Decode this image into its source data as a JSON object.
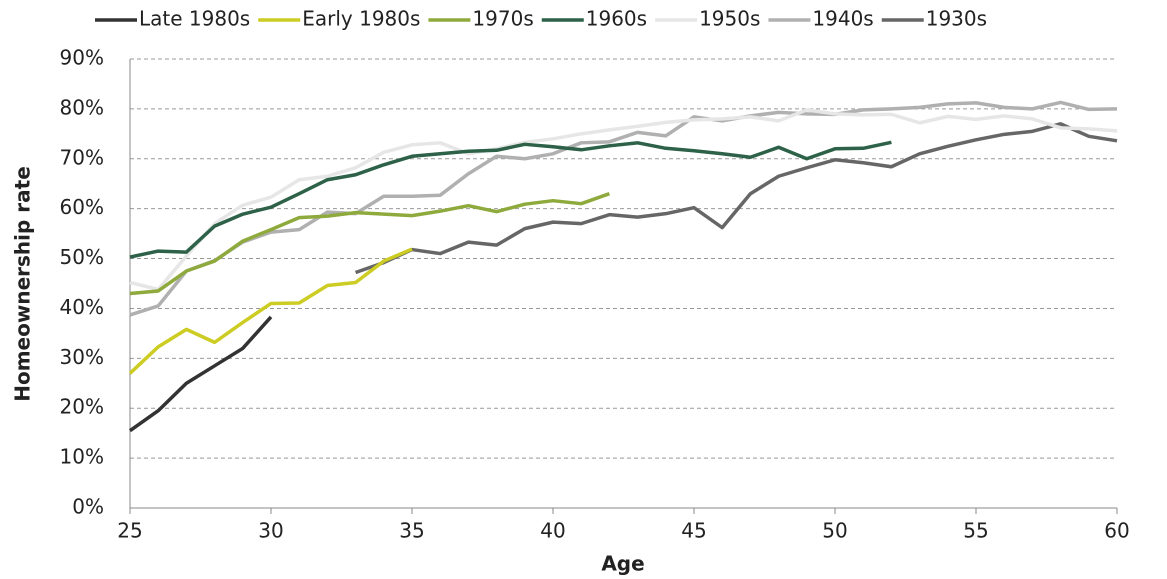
{
  "chart_data": {
    "type": "line",
    "xlabel": "Age",
    "ylabel": "Homeownership rate",
    "x": [
      25,
      26,
      27,
      28,
      29,
      30,
      31,
      32,
      33,
      34,
      35,
      36,
      37,
      38,
      39,
      40,
      41,
      42,
      43,
      44,
      45,
      46,
      47,
      48,
      49,
      50,
      51,
      52,
      53,
      54,
      55,
      56,
      57,
      58,
      59,
      60
    ],
    "xlim": [
      25,
      60
    ],
    "xticks": [
      25,
      30,
      35,
      40,
      45,
      50,
      55,
      60
    ],
    "ylim": [
      0,
      90
    ],
    "yticks": [
      {
        "value": 0,
        "label": "0%"
      },
      {
        "value": 10,
        "label": "10%"
      },
      {
        "value": 20,
        "label": "20%"
      },
      {
        "value": 30,
        "label": "30%"
      },
      {
        "value": 40,
        "label": "40%"
      },
      {
        "value": 50,
        "label": "50%"
      },
      {
        "value": 60,
        "label": "60%"
      },
      {
        "value": 70,
        "label": "70%"
      },
      {
        "value": 80,
        "label": "80%"
      },
      {
        "value": 90,
        "label": "90%"
      }
    ],
    "grid": true,
    "legend": "top",
    "series": [
      {
        "name": "Late 1980s",
        "color": "#333333",
        "values": [
          15.5,
          19.5,
          25,
          28.5,
          32,
          38.3,
          null,
          null,
          null,
          null,
          null,
          null,
          null,
          null,
          null,
          null,
          null,
          null,
          null,
          null,
          null,
          null,
          null,
          null,
          null,
          null,
          null,
          null,
          null,
          null,
          null,
          null,
          null,
          null,
          null,
          null
        ]
      },
      {
        "name": "Early 1980s",
        "color": "#cccc22",
        "values": [
          27,
          32.3,
          35.8,
          33.2,
          37.2,
          41,
          41.1,
          44.6,
          45.2,
          49.5,
          51.9,
          null,
          null,
          null,
          null,
          null,
          null,
          null,
          null,
          null,
          null,
          null,
          null,
          null,
          null,
          null,
          null,
          null,
          null,
          null,
          null,
          null,
          null,
          null,
          null,
          null
        ]
      },
      {
        "name": "1970s",
        "color": "#8faa3c",
        "values": [
          43,
          43.5,
          47.5,
          49.5,
          53.5,
          55.8,
          58.2,
          58.5,
          59.2,
          58.9,
          58.6,
          59.5,
          60.6,
          59.4,
          60.9,
          61.6,
          61,
          63,
          null,
          null,
          null,
          null,
          null,
          null,
          null,
          null,
          null,
          null,
          null,
          null,
          null,
          null,
          null,
          null,
          null,
          null
        ]
      },
      {
        "name": "1960s",
        "color": "#2d6148",
        "values": [
          50.3,
          51.5,
          51.3,
          56.5,
          58.9,
          60.3,
          63,
          65.8,
          66.8,
          68.8,
          70.5,
          71,
          71.5,
          71.7,
          72.9,
          72.4,
          71.8,
          72.6,
          73.2,
          72.1,
          71.6,
          71,
          70.3,
          72.3,
          70,
          72,
          72.1,
          73.3,
          null,
          null,
          null,
          null,
          null,
          null,
          null,
          null
        ]
      },
      {
        "name": "1950s",
        "color": "#e6e6e6",
        "values": [
          45.2,
          43.8,
          50.5,
          57,
          60.7,
          62.3,
          65.8,
          66.5,
          68.2,
          71.3,
          72.8,
          73.2,
          71,
          72,
          73.3,
          74,
          75,
          75.8,
          76.5,
          77.3,
          77.8,
          78,
          78.4,
          77.6,
          79.8,
          79,
          78.8,
          78.9,
          77.2,
          78.5,
          77.9,
          78.6,
          78,
          76.2,
          76,
          75.6
        ]
      },
      {
        "name": "1940s",
        "color": "#b0b0b0",
        "values": [
          38.7,
          40.5,
          47.5,
          49.6,
          53.3,
          55.3,
          55.8,
          59.3,
          59,
          62.5,
          62.5,
          62.7,
          67,
          70.5,
          70,
          71,
          73.2,
          73.4,
          75.3,
          74.6,
          78.4,
          77.6,
          78.6,
          79.3,
          79,
          78.9,
          79.8,
          80,
          80.3,
          81,
          81.2,
          80.3,
          80,
          81.3,
          79.9,
          80
        ]
      },
      {
        "name": "1930s",
        "color": "#666666",
        "values": [
          null,
          null,
          null,
          null,
          null,
          null,
          null,
          null,
          47.2,
          49.2,
          51.8,
          51,
          53.3,
          52.7,
          56,
          57.3,
          57,
          58.8,
          58.3,
          59,
          60.2,
          56.2,
          63,
          66.5,
          68.2,
          69.8,
          69.2,
          68.4,
          71,
          72.5,
          73.8,
          74.9,
          75.5,
          77,
          74.5,
          73.6
        ]
      }
    ]
  }
}
